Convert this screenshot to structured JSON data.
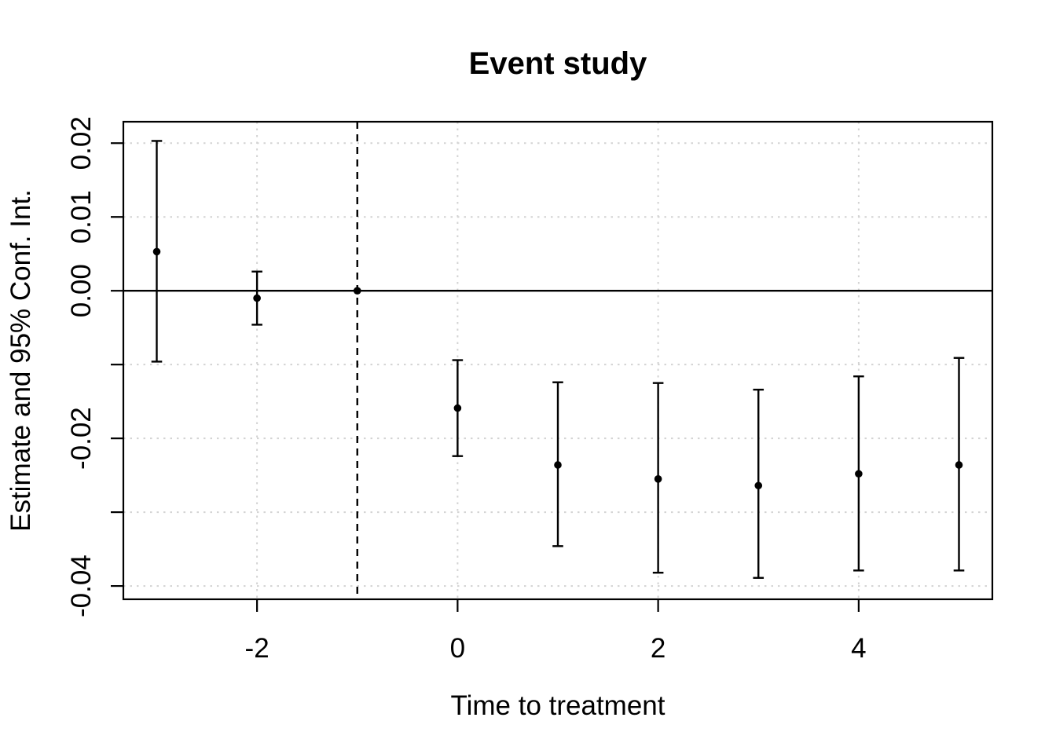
{
  "page": {
    "background": "#ffffff"
  },
  "chart_data": {
    "type": "scatter",
    "title": "Event study",
    "xlabel": "Time to treatment",
    "ylabel": "Estimate and 95% Conf. Int.",
    "xlim": [
      -3.333,
      5.333
    ],
    "ylim": [
      -0.0418,
      0.0229
    ],
    "grid": true,
    "legend": "none",
    "x_ticks": [
      {
        "value": -2,
        "label": "-2"
      },
      {
        "value": 0,
        "label": "0"
      },
      {
        "value": 2,
        "label": "2"
      },
      {
        "value": 4,
        "label": "4"
      }
    ],
    "y_ticks": [
      {
        "value": 0.02,
        "label": "0.02"
      },
      {
        "value": 0.01,
        "label": "0.01"
      },
      {
        "value": 0.0,
        "label": "0.00"
      },
      {
        "value": -0.01,
        "label": ""
      },
      {
        "value": -0.02,
        "label": "-0.02"
      },
      {
        "value": -0.03,
        "label": ""
      },
      {
        "value": -0.04,
        "label": "-0.04"
      }
    ],
    "reference_lines": {
      "horizontal_solid_y": 0,
      "vertical_dashed_x": -1
    },
    "series": [
      {
        "name": "Estimate and 95% Conf. Int.",
        "marker": "filled-circle",
        "color": "#000000",
        "points": [
          {
            "x": -3,
            "estimate": 0.0053,
            "ci_low": -0.0096,
            "ci_high": 0.0203
          },
          {
            "x": -2,
            "estimate": -0.001,
            "ci_low": -0.0046,
            "ci_high": 0.0026
          },
          {
            "x": -1,
            "estimate": 0.0,
            "ci_low": null,
            "ci_high": null,
            "reference": true
          },
          {
            "x": 0,
            "estimate": -0.0159,
            "ci_low": -0.0224,
            "ci_high": -0.0094
          },
          {
            "x": 1,
            "estimate": -0.0236,
            "ci_low": -0.0346,
            "ci_high": -0.0124
          },
          {
            "x": 2,
            "estimate": -0.0255,
            "ci_low": -0.0382,
            "ci_high": -0.0125
          },
          {
            "x": 3,
            "estimate": -0.0264,
            "ci_low": -0.0389,
            "ci_high": -0.0134
          },
          {
            "x": 4,
            "estimate": -0.0248,
            "ci_low": -0.0379,
            "ci_high": -0.0116
          },
          {
            "x": 5,
            "estimate": -0.0236,
            "ci_low": -0.0379,
            "ci_high": -0.0091
          }
        ]
      }
    ],
    "colors": {
      "background": "#ffffff",
      "text": "#000000",
      "axis": "#000000",
      "grid": "#d3d3d3",
      "points": "#000000",
      "error_bars": "#000000",
      "zero_line": "#000000",
      "dashed_line": "#000000"
    }
  }
}
